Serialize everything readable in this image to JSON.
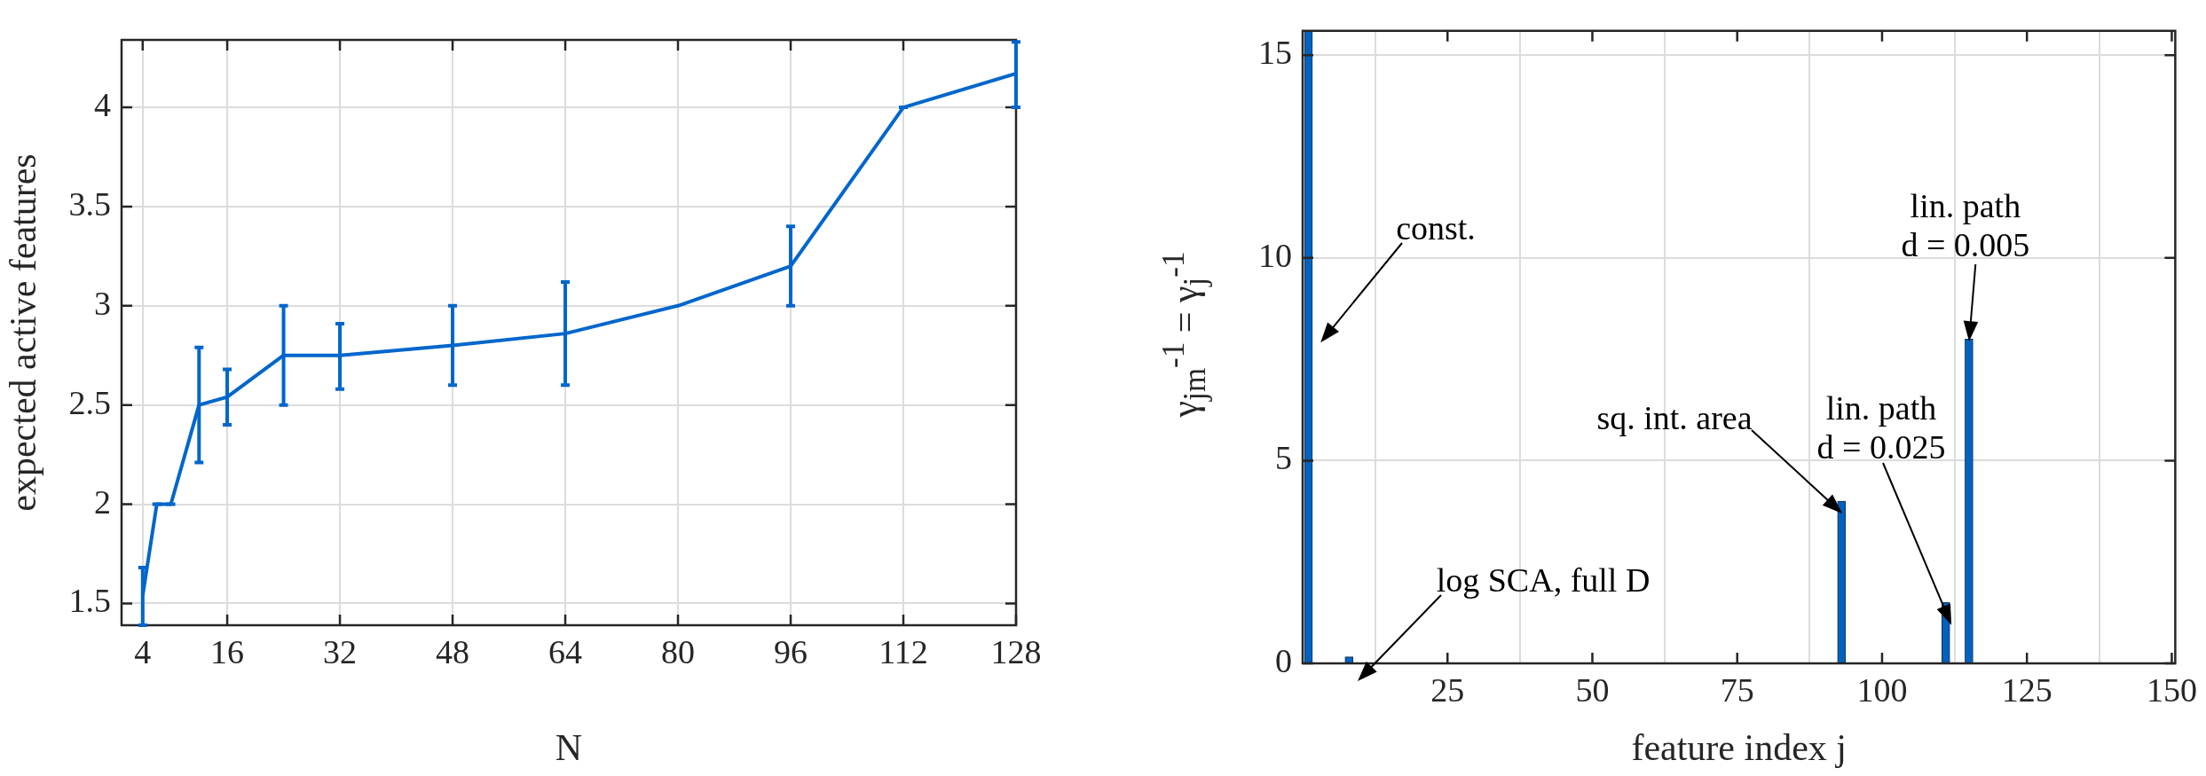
{
  "chart_data": [
    {
      "type": "line",
      "xlabel": "N",
      "ylabel": "expected active features",
      "x": [
        4,
        6,
        8,
        12,
        16,
        24,
        32,
        48,
        64,
        80,
        96,
        112,
        128
      ],
      "values": [
        1.54,
        2,
        2,
        2.5,
        2.54,
        2.75,
        2.75,
        2.8,
        2.86,
        3,
        3.2,
        4,
        4.17
      ],
      "errors": [
        [
          1.39,
          1.68
        ],
        0,
        0,
        [
          2.21,
          2.79
        ],
        [
          2.4,
          2.68
        ],
        [
          2.5,
          3
        ],
        [
          2.58,
          2.91
        ],
        [
          2.6,
          3
        ],
        [
          2.6,
          3.12
        ],
        null,
        [
          3,
          3.4
        ],
        0,
        [
          4,
          4.33
        ]
      ],
      "color": "#0066cc",
      "xlim": [
        1,
        128
      ],
      "xticks": [
        4,
        16,
        32,
        48,
        64,
        80,
        96,
        112,
        128
      ],
      "ylim": [
        1.39,
        4.34
      ],
      "yticks": [
        1.5,
        2,
        2.5,
        3,
        3.5,
        4
      ],
      "grid": true
    },
    {
      "type": "bar",
      "xlabel": "feature index j",
      "ylabel": "γ$_{jm}$$^{-1}$ = γ$_{j}$$^{-1}$",
      "x": [
        1,
        8,
        93,
        111,
        115
      ],
      "values": [
        15.6,
        0.16,
        4,
        1.5,
        8
      ],
      "color": "#0062bf",
      "xlim": [
        0,
        150.6
      ],
      "xticks": [
        25,
        50,
        75,
        100,
        125,
        150
      ],
      "ylim": [
        0,
        15.6
      ],
      "yticks": [
        0,
        5,
        10,
        15
      ],
      "grid": true,
      "annotations": [
        "const.",
        "log SCA, full D",
        "sq. int. area",
        "lin. path\nd = 0.025",
        {
          "text": "lin. path\nd = 0.005",
          "x": 115,
          "y": 8
        }
      ]
    }
  ]
}
